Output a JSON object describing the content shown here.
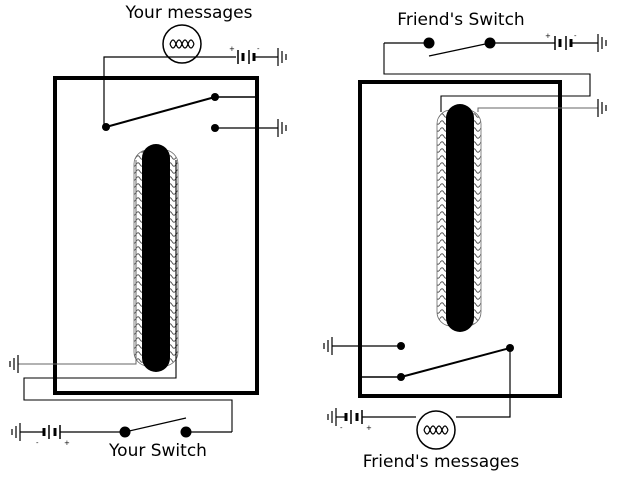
{
  "labels": {
    "your_messages": "Your messages",
    "friends_switch": "Friend's Switch",
    "your_switch": "Your Switch",
    "friends_messages": "Friend's messages"
  },
  "battery_polarity": {
    "plus": "+",
    "minus": "-"
  }
}
